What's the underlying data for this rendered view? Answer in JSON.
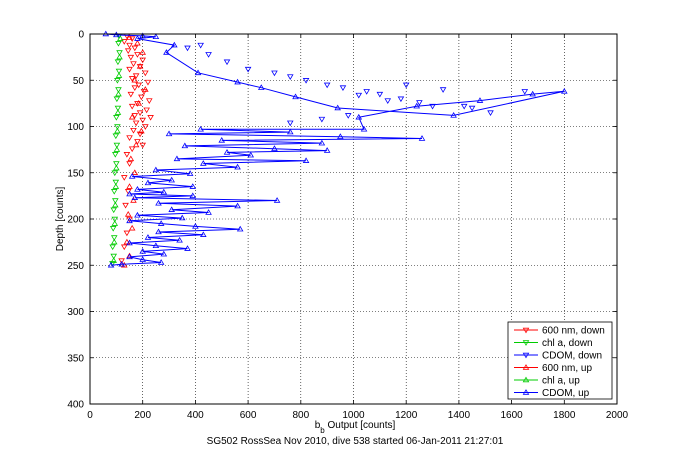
{
  "chart_data": {
    "type": "scatter",
    "xlabel": {
      "main": "b",
      "sub": "b",
      "rest": " Output [counts]"
    },
    "ylabel": "Depth [counts]",
    "caption": "SG502 RossSea Nov 2010, dive 538 started 06-Jan-2011 21:27:01",
    "xlim": [
      0,
      2000
    ],
    "ylim": [
      0,
      400
    ],
    "y_reversed": true,
    "x_ticks": [
      0,
      200,
      400,
      600,
      800,
      1000,
      1200,
      1400,
      1600,
      1800,
      2000
    ],
    "y_ticks": [
      0,
      50,
      100,
      150,
      200,
      250,
      300,
      350,
      400
    ],
    "grid": true,
    "legend_position": "bottom-right",
    "series": [
      {
        "name": "600 nm, down",
        "color": "#ff0000",
        "marker": "triangle-down",
        "line": false,
        "points": [
          [
            140,
            2
          ],
          [
            160,
            5
          ],
          [
            130,
            8
          ],
          [
            150,
            12
          ],
          [
            170,
            15
          ],
          [
            145,
            18
          ],
          [
            180,
            22
          ],
          [
            155,
            25
          ],
          [
            200,
            28
          ],
          [
            165,
            32
          ],
          [
            190,
            35
          ],
          [
            150,
            38
          ],
          [
            210,
            42
          ],
          [
            175,
            45
          ],
          [
            160,
            48
          ],
          [
            220,
            52
          ],
          [
            185,
            55
          ],
          [
            170,
            58
          ],
          [
            205,
            62
          ],
          [
            155,
            65
          ],
          [
            195,
            68
          ],
          [
            225,
            72
          ],
          [
            180,
            75
          ],
          [
            160,
            78
          ],
          [
            215,
            82
          ],
          [
            190,
            85
          ],
          [
            170,
            88
          ],
          [
            230,
            90
          ],
          [
            200,
            93
          ],
          [
            175,
            96
          ],
          [
            210,
            100
          ],
          [
            165,
            104
          ],
          [
            190,
            108
          ],
          [
            150,
            112
          ],
          [
            180,
            116
          ],
          [
            200,
            120
          ],
          [
            160,
            124
          ],
          [
            140,
            130
          ],
          [
            150,
            140
          ],
          [
            130,
            155
          ],
          [
            145,
            170
          ],
          [
            135,
            185
          ],
          [
            150,
            200
          ],
          [
            140,
            215
          ],
          [
            130,
            230
          ],
          [
            120,
            245
          ]
        ]
      },
      {
        "name": "chl a, down",
        "color": "#00cc00",
        "marker": "triangle-down",
        "line": false,
        "points": [
          [
            110,
            2
          ],
          [
            108,
            10
          ],
          [
            112,
            20
          ],
          [
            106,
            30
          ],
          [
            110,
            40
          ],
          [
            104,
            50
          ],
          [
            108,
            60
          ],
          [
            102,
            70
          ],
          [
            106,
            80
          ],
          [
            100,
            90
          ],
          [
            104,
            100
          ],
          [
            98,
            110
          ],
          [
            102,
            120
          ],
          [
            96,
            130
          ],
          [
            100,
            140
          ],
          [
            94,
            150
          ],
          [
            98,
            160
          ],
          [
            92,
            170
          ],
          [
            96,
            180
          ],
          [
            90,
            190
          ],
          [
            94,
            200
          ],
          [
            88,
            210
          ],
          [
            92,
            220
          ],
          [
            86,
            230
          ],
          [
            90,
            240
          ],
          [
            85,
            248
          ]
        ]
      },
      {
        "name": "CDOM, down",
        "color": "#0000ff",
        "marker": "triangle-down",
        "line": false,
        "points": [
          [
            420,
            12
          ],
          [
            370,
            15
          ],
          [
            450,
            22
          ],
          [
            520,
            30
          ],
          [
            600,
            38
          ],
          [
            700,
            42
          ],
          [
            760,
            46
          ],
          [
            820,
            50
          ],
          [
            900,
            55
          ],
          [
            960,
            58
          ],
          [
            1050,
            62
          ],
          [
            1100,
            65
          ],
          [
            1180,
            70
          ],
          [
            1250,
            74
          ],
          [
            1300,
            78
          ],
          [
            1450,
            80
          ],
          [
            1520,
            85
          ],
          [
            1650,
            62
          ],
          [
            1340,
            60
          ],
          [
            980,
            88
          ],
          [
            880,
            92
          ],
          [
            760,
            96
          ],
          [
            1130,
            72
          ],
          [
            1420,
            78
          ],
          [
            1200,
            55
          ],
          [
            1020,
            66
          ]
        ]
      },
      {
        "name": "600 nm, up",
        "color": "#ff0000",
        "marker": "triangle-up",
        "line": false,
        "points": [
          [
            150,
            4
          ],
          [
            180,
            10
          ],
          [
            200,
            20
          ],
          [
            190,
            35
          ],
          [
            170,
            50
          ],
          [
            210,
            60
          ],
          [
            185,
            75
          ],
          [
            160,
            90
          ],
          [
            195,
            105
          ],
          [
            175,
            120
          ],
          [
            155,
            135
          ],
          [
            170,
            150
          ],
          [
            150,
            165
          ],
          [
            165,
            180
          ],
          [
            145,
            195
          ],
          [
            160,
            210
          ],
          [
            140,
            225
          ],
          [
            150,
            240
          ],
          [
            130,
            250
          ]
        ]
      },
      {
        "name": "chl a, up",
        "color": "#00cc00",
        "marker": "triangle-up",
        "line": false,
        "points": [
          [
            115,
            5
          ],
          [
            112,
            25
          ],
          [
            110,
            45
          ],
          [
            108,
            65
          ],
          [
            106,
            85
          ],
          [
            104,
            105
          ],
          [
            102,
            125
          ],
          [
            100,
            145
          ],
          [
            98,
            165
          ],
          [
            96,
            185
          ],
          [
            94,
            205
          ],
          [
            92,
            225
          ],
          [
            90,
            245
          ]
        ]
      },
      {
        "name": "CDOM, up",
        "color": "#0000ff",
        "marker": "triangle-up",
        "line": true,
        "points": [
          [
            60,
            0
          ],
          [
            100,
            1
          ],
          [
            200,
            2
          ],
          [
            250,
            3
          ],
          [
            180,
            5
          ],
          [
            320,
            12
          ],
          [
            290,
            20
          ],
          [
            410,
            42
          ],
          [
            560,
            52
          ],
          [
            650,
            58
          ],
          [
            780,
            68
          ],
          [
            940,
            80
          ],
          [
            1380,
            88
          ],
          [
            1800,
            62
          ],
          [
            1680,
            65
          ],
          [
            1480,
            72
          ],
          [
            1240,
            78
          ],
          [
            1020,
            90
          ],
          [
            1040,
            103
          ],
          [
            420,
            103
          ],
          [
            760,
            106
          ],
          [
            300,
            108
          ],
          [
            950,
            111
          ],
          [
            1260,
            113
          ],
          [
            500,
            115
          ],
          [
            880,
            118
          ],
          [
            360,
            121
          ],
          [
            700,
            124
          ],
          [
            900,
            126
          ],
          [
            520,
            128
          ],
          [
            610,
            131
          ],
          [
            330,
            135
          ],
          [
            820,
            137
          ],
          [
            430,
            140
          ],
          [
            560,
            144
          ],
          [
            250,
            147
          ],
          [
            380,
            151
          ],
          [
            160,
            154
          ],
          [
            310,
            158
          ],
          [
            220,
            161
          ],
          [
            390,
            165
          ],
          [
            180,
            168
          ],
          [
            280,
            171
          ],
          [
            150,
            173
          ],
          [
            390,
            175
          ],
          [
            170,
            177
          ],
          [
            710,
            180
          ],
          [
            260,
            183
          ],
          [
            560,
            186
          ],
          [
            310,
            190
          ],
          [
            450,
            193
          ],
          [
            180,
            196
          ],
          [
            350,
            199
          ],
          [
            150,
            202
          ],
          [
            270,
            205
          ],
          [
            400,
            208
          ],
          [
            570,
            211
          ],
          [
            260,
            214
          ],
          [
            430,
            217
          ],
          [
            220,
            220
          ],
          [
            340,
            223
          ],
          [
            150,
            226
          ],
          [
            250,
            229
          ],
          [
            370,
            232
          ],
          [
            200,
            235
          ],
          [
            280,
            238
          ],
          [
            150,
            241
          ],
          [
            200,
            244
          ],
          [
            270,
            247
          ],
          [
            120,
            249
          ],
          [
            80,
            250
          ]
        ]
      }
    ]
  }
}
